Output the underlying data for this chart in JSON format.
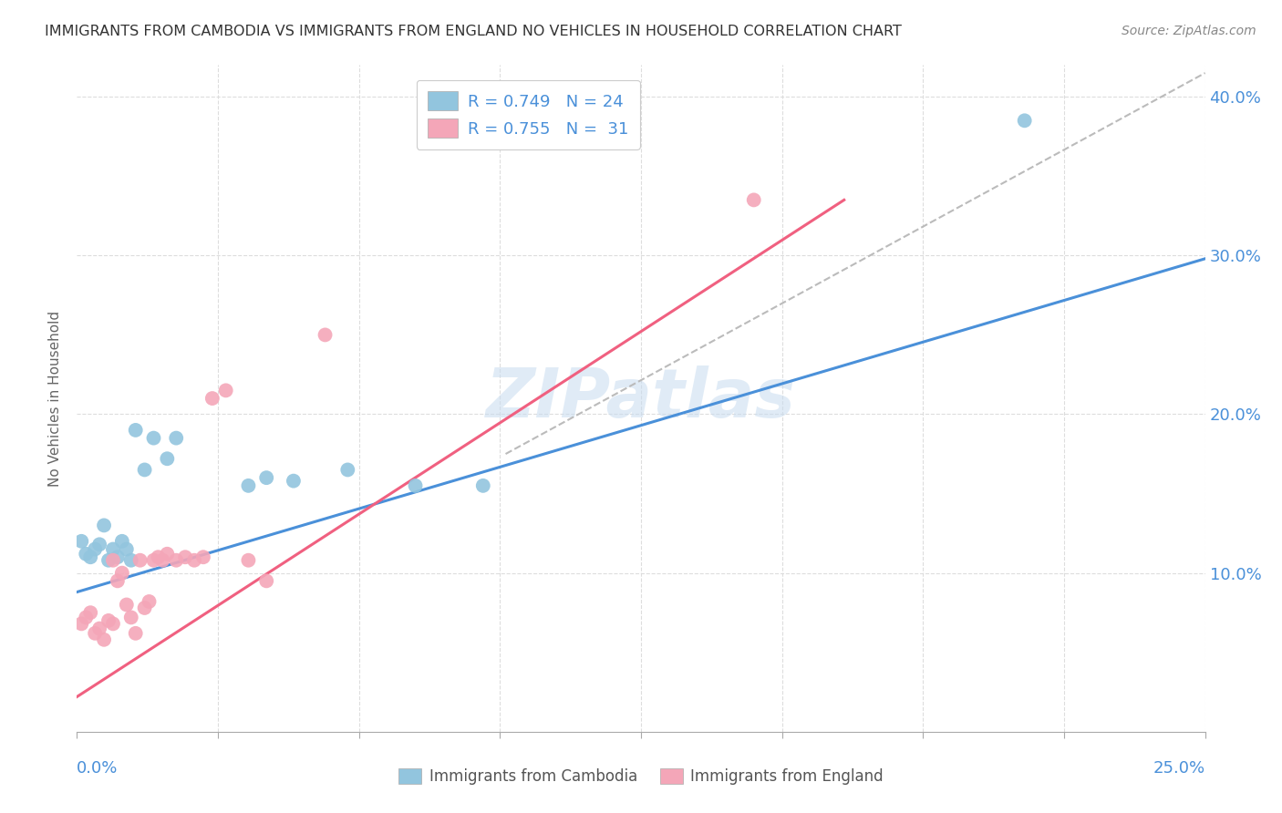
{
  "title": "IMMIGRANTS FROM CAMBODIA VS IMMIGRANTS FROM ENGLAND NO VEHICLES IN HOUSEHOLD CORRELATION CHART",
  "source": "Source: ZipAtlas.com",
  "ylabel": "No Vehicles in Household",
  "watermark": "ZIPatlas",
  "xlim": [
    0.0,
    0.25
  ],
  "ylim": [
    0.0,
    0.42
  ],
  "yticks": [
    0.0,
    0.1,
    0.2,
    0.3,
    0.4
  ],
  "ytick_labels": [
    "",
    "10.0%",
    "20.0%",
    "30.0%",
    "40.0%"
  ],
  "legend_r_cambodia": "R = 0.749",
  "legend_n_cambodia": "N = 24",
  "legend_r_england": "R = 0.755",
  "legend_n_england": "N =  31",
  "color_cambodia": "#92C5DE",
  "color_england": "#F4A6B8",
  "color_cambodia_line": "#4A90D9",
  "color_england_line": "#F06080",
  "color_dashed": "#BBBBBB",
  "background_color": "#FFFFFF",
  "grid_color": "#DDDDDD",
  "axis_color": "#4A90D9",
  "cambodia_x": [
    0.001,
    0.002,
    0.003,
    0.004,
    0.005,
    0.006,
    0.007,
    0.008,
    0.009,
    0.01,
    0.011,
    0.012,
    0.013,
    0.015,
    0.017,
    0.02,
    0.022,
    0.038,
    0.042,
    0.048,
    0.06,
    0.075,
    0.09,
    0.21
  ],
  "cambodia_y": [
    0.12,
    0.112,
    0.11,
    0.115,
    0.118,
    0.13,
    0.108,
    0.115,
    0.11,
    0.12,
    0.115,
    0.108,
    0.19,
    0.165,
    0.185,
    0.172,
    0.185,
    0.155,
    0.16,
    0.158,
    0.165,
    0.155,
    0.155,
    0.385
  ],
  "england_x": [
    0.001,
    0.002,
    0.003,
    0.004,
    0.005,
    0.006,
    0.007,
    0.008,
    0.008,
    0.009,
    0.01,
    0.011,
    0.012,
    0.013,
    0.014,
    0.015,
    0.016,
    0.017,
    0.018,
    0.019,
    0.02,
    0.022,
    0.024,
    0.026,
    0.028,
    0.03,
    0.033,
    0.038,
    0.042,
    0.055,
    0.15
  ],
  "england_y": [
    0.068,
    0.072,
    0.075,
    0.062,
    0.065,
    0.058,
    0.07,
    0.068,
    0.108,
    0.095,
    0.1,
    0.08,
    0.072,
    0.062,
    0.108,
    0.078,
    0.082,
    0.108,
    0.11,
    0.108,
    0.112,
    0.108,
    0.11,
    0.108,
    0.11,
    0.21,
    0.215,
    0.108,
    0.095,
    0.25,
    0.335
  ],
  "cam_line_x": [
    0.0,
    0.25
  ],
  "cam_line_y": [
    0.088,
    0.298
  ],
  "eng_line_x": [
    0.0,
    0.17
  ],
  "eng_line_y": [
    0.022,
    0.335
  ],
  "dash_line_x": [
    0.095,
    0.25
  ],
  "dash_line_y": [
    0.175,
    0.415
  ]
}
